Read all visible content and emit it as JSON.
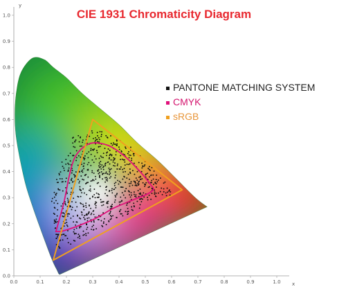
{
  "chart_data": {
    "type": "scatter",
    "title": "CIE 1931 Chromaticity Diagram",
    "xlabel": "x",
    "ylabel": "y",
    "xlim": [
      0,
      1.0
    ],
    "ylim": [
      0,
      1.0
    ],
    "x_ticks": [
      "0.0",
      "0.1",
      "0.2",
      "0.3",
      "0.4",
      "0.5",
      "0.6",
      "0.7",
      "0.8",
      "0.9",
      "1.0"
    ],
    "y_ticks": [
      "0.0",
      "0.1",
      "0.2",
      "0.3",
      "0.4",
      "0.5",
      "0.6",
      "0.7",
      "0.8",
      "0.9",
      "1.0"
    ],
    "grid": false,
    "legend_position": "right",
    "spectral_locus": [
      [
        0.174,
        0.005
      ],
      [
        0.17,
        0.009
      ],
      [
        0.165,
        0.02
      ],
      [
        0.155,
        0.04
      ],
      [
        0.142,
        0.07
      ],
      [
        0.124,
        0.118
      ],
      [
        0.096,
        0.195
      ],
      [
        0.07,
        0.27
      ],
      [
        0.045,
        0.35
      ],
      [
        0.023,
        0.45
      ],
      [
        0.008,
        0.54
      ],
      [
        0.004,
        0.62
      ],
      [
        0.009,
        0.7
      ],
      [
        0.027,
        0.78
      ],
      [
        0.07,
        0.835
      ],
      [
        0.115,
        0.83
      ],
      [
        0.15,
        0.8
      ],
      [
        0.2,
        0.76
      ],
      [
        0.26,
        0.7
      ],
      [
        0.33,
        0.64
      ],
      [
        0.4,
        0.58
      ],
      [
        0.47,
        0.51
      ],
      [
        0.55,
        0.44
      ],
      [
        0.62,
        0.37
      ],
      [
        0.69,
        0.3
      ],
      [
        0.735,
        0.265
      ]
    ],
    "series": [
      {
        "name": "PANTONE MATCHING SYSTEM",
        "color": "#111111",
        "marker": "dot"
      },
      {
        "name": "CMYK",
        "color": "#e0107a",
        "marker": "outline",
        "points": [
          [
            0.16,
            0.17
          ],
          [
            0.19,
            0.28
          ],
          [
            0.21,
            0.38
          ],
          [
            0.23,
            0.45
          ],
          [
            0.26,
            0.49
          ],
          [
            0.3,
            0.51
          ],
          [
            0.36,
            0.5
          ],
          [
            0.42,
            0.46
          ],
          [
            0.48,
            0.4
          ],
          [
            0.52,
            0.35
          ],
          [
            0.53,
            0.33
          ],
          [
            0.5,
            0.31
          ],
          [
            0.45,
            0.29
          ],
          [
            0.38,
            0.26
          ],
          [
            0.31,
            0.22
          ],
          [
            0.24,
            0.19
          ],
          [
            0.18,
            0.17
          ]
        ]
      },
      {
        "name": "sRGB",
        "color": "#f0a020",
        "marker": "triangle",
        "points": [
          [
            0.64,
            0.33
          ],
          [
            0.3,
            0.6
          ],
          [
            0.15,
            0.06
          ]
        ]
      }
    ]
  }
}
